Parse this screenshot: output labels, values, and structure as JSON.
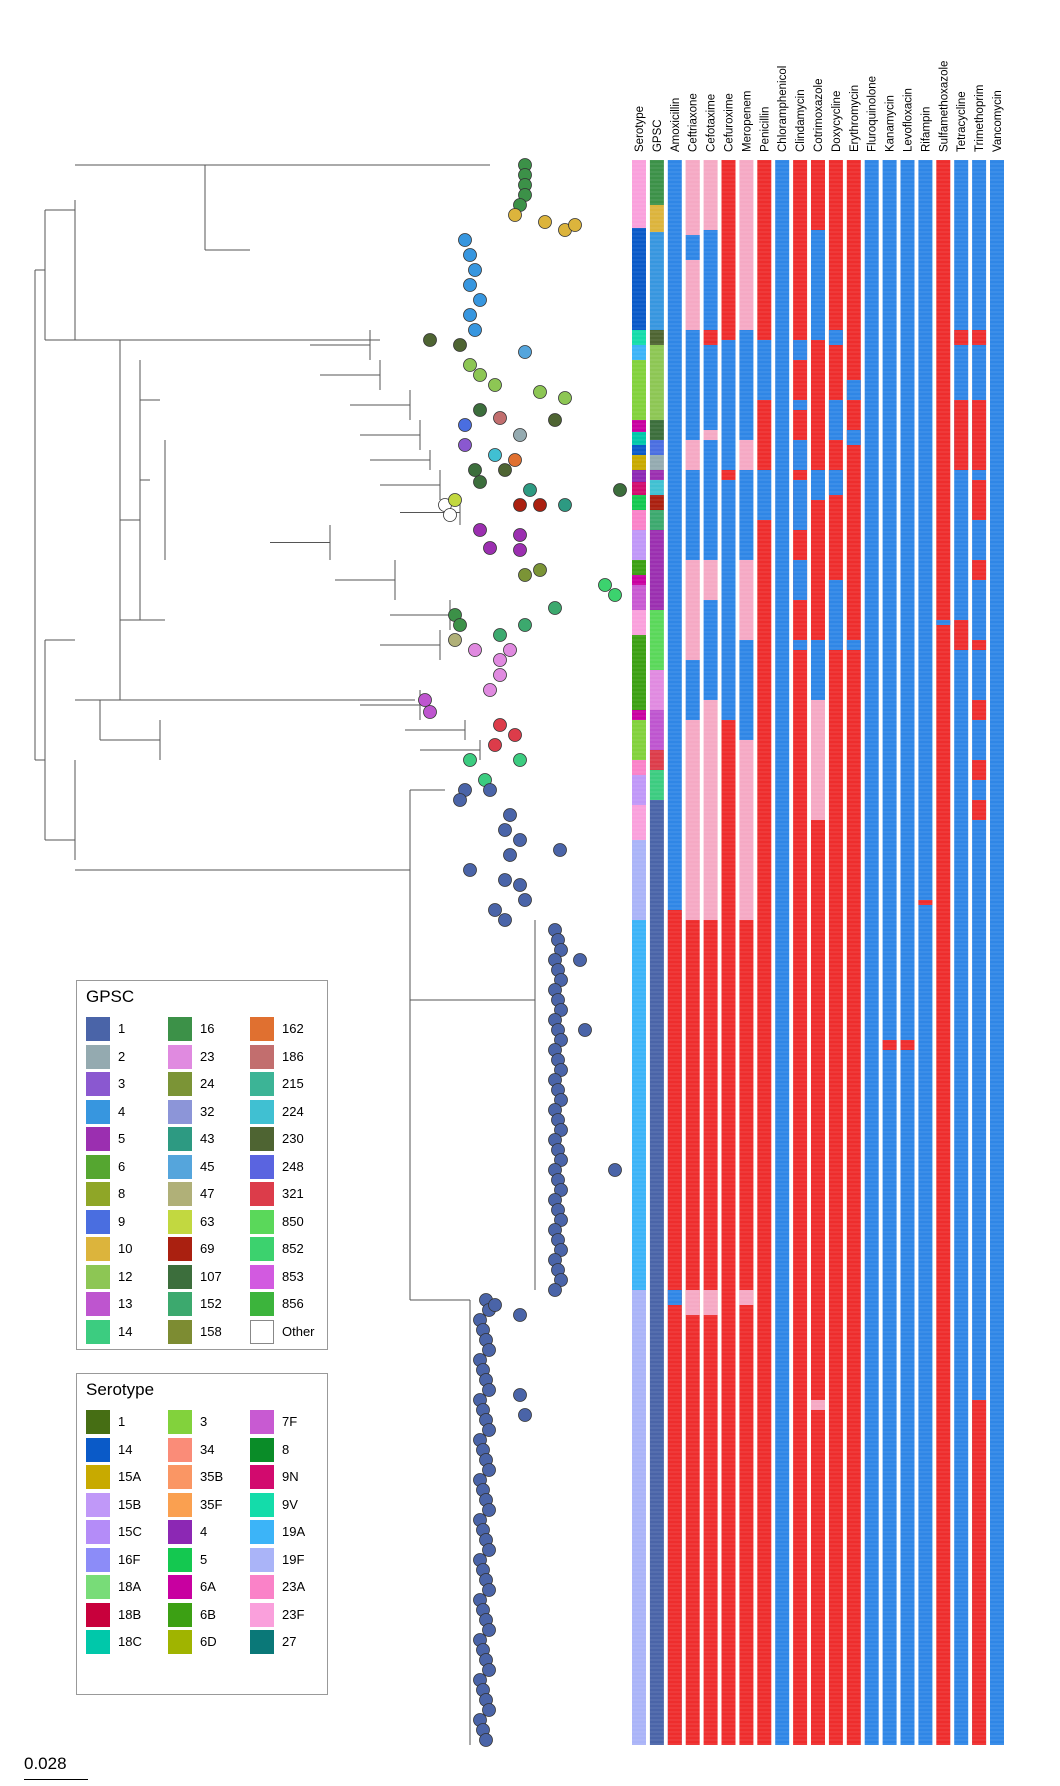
{
  "scale_bar": {
    "label": "0.028"
  },
  "columns": [
    "Serotype",
    "GPSC",
    "Amoxicillin",
    "Ceftriaxone",
    "Cefotaxime",
    "Cefuroxime",
    "Meropenem",
    "Penicillin",
    "Chloramphenicol",
    "Clindamycin",
    "Cotrimoxazole",
    "Doxycycline",
    "Erythromycin",
    "Fluroquinolone",
    "Kanamycin",
    "Levofloxacin",
    "Rifampin",
    "Sulfamethoxazole",
    "Tetracycline",
    "Trimethoprim",
    "Vancomycin"
  ],
  "colors": {
    "resistant": "#ee2d2d",
    "susceptible": "#2f86e6",
    "intermediate": "#f5a9c4",
    "branch": "#555555"
  },
  "legend_gpsc": {
    "title": "GPSC",
    "items": [
      {
        "label": "1",
        "color": "#4a64a8"
      },
      {
        "label": "2",
        "color": "#94aab0"
      },
      {
        "label": "3",
        "color": "#8a58d0"
      },
      {
        "label": "4",
        "color": "#3796df"
      },
      {
        "label": "5",
        "color": "#9b2fb0"
      },
      {
        "label": "6",
        "color": "#55a630"
      },
      {
        "label": "8",
        "color": "#8fa627"
      },
      {
        "label": "9",
        "color": "#4a6ee0"
      },
      {
        "label": "10",
        "color": "#dcb43c"
      },
      {
        "label": "12",
        "color": "#8dc654"
      },
      {
        "label": "13",
        "color": "#be55cf"
      },
      {
        "label": "14",
        "color": "#3ccc80"
      },
      {
        "label": "16",
        "color": "#3c9148"
      },
      {
        "label": "23",
        "color": "#e08ae0"
      },
      {
        "label": "24",
        "color": "#7b9436"
      },
      {
        "label": "32",
        "color": "#8c95d8"
      },
      {
        "label": "43",
        "color": "#2d9a82"
      },
      {
        "label": "45",
        "color": "#55a5dc"
      },
      {
        "label": "47",
        "color": "#b0b078"
      },
      {
        "label": "63",
        "color": "#c2d840"
      },
      {
        "label": "69",
        "color": "#aa2010"
      },
      {
        "label": "107",
        "color": "#3c6e3c"
      },
      {
        "label": "152",
        "color": "#3ca96e"
      },
      {
        "label": "158",
        "color": "#7d8c32"
      },
      {
        "label": "162",
        "color": "#e07030"
      },
      {
        "label": "186",
        "color": "#c26e6e"
      },
      {
        "label": "215",
        "color": "#3cb496"
      },
      {
        "label": "224",
        "color": "#40c0d2"
      },
      {
        "label": "230",
        "color": "#4e6432"
      },
      {
        "label": "248",
        "color": "#5a64e0"
      },
      {
        "label": "321",
        "color": "#dc3c4a"
      },
      {
        "label": "850",
        "color": "#5ad85a"
      },
      {
        "label": "852",
        "color": "#3cd26e"
      },
      {
        "label": "853",
        "color": "#d25ae0"
      },
      {
        "label": "856",
        "color": "#3cb43c"
      },
      {
        "label": "Other",
        "color": "#ffffff"
      }
    ]
  },
  "legend_serotype": {
    "title": "Serotype",
    "items": [
      {
        "label": "1",
        "color": "#466e14"
      },
      {
        "label": "14",
        "color": "#0a5ac8"
      },
      {
        "label": "15A",
        "color": "#c8aa00"
      },
      {
        "label": "15B",
        "color": "#c098f8"
      },
      {
        "label": "15C",
        "color": "#b48cf8"
      },
      {
        "label": "16F",
        "color": "#8c8cf8"
      },
      {
        "label": "18A",
        "color": "#78dc78"
      },
      {
        "label": "18B",
        "color": "#c8003c"
      },
      {
        "label": "18C",
        "color": "#00c8aa"
      },
      {
        "label": "3",
        "color": "#82d23c"
      },
      {
        "label": "34",
        "color": "#fa8c78"
      },
      {
        "label": "35B",
        "color": "#fa9664"
      },
      {
        "label": "35F",
        "color": "#faa050"
      },
      {
        "label": "4",
        "color": "#8c28b4"
      },
      {
        "label": "5",
        "color": "#14c850"
      },
      {
        "label": "6A",
        "color": "#c800a0"
      },
      {
        "label": "6B",
        "color": "#3ca014"
      },
      {
        "label": "6D",
        "color": "#a0b400"
      },
      {
        "label": "7F",
        "color": "#c85ad2"
      },
      {
        "label": "8",
        "color": "#0a8c28"
      },
      {
        "label": "9N",
        "color": "#d20a6e"
      },
      {
        "label": "9V",
        "color": "#14dcaa"
      },
      {
        "label": "19A",
        "color": "#3cb4f8"
      },
      {
        "label": "19F",
        "color": "#aab4f8"
      },
      {
        "label": "23A",
        "color": "#fa82c8"
      },
      {
        "label": "23F",
        "color": "#faa0dc"
      },
      {
        "label": "27",
        "color": "#0a7878"
      }
    ]
  }
}
